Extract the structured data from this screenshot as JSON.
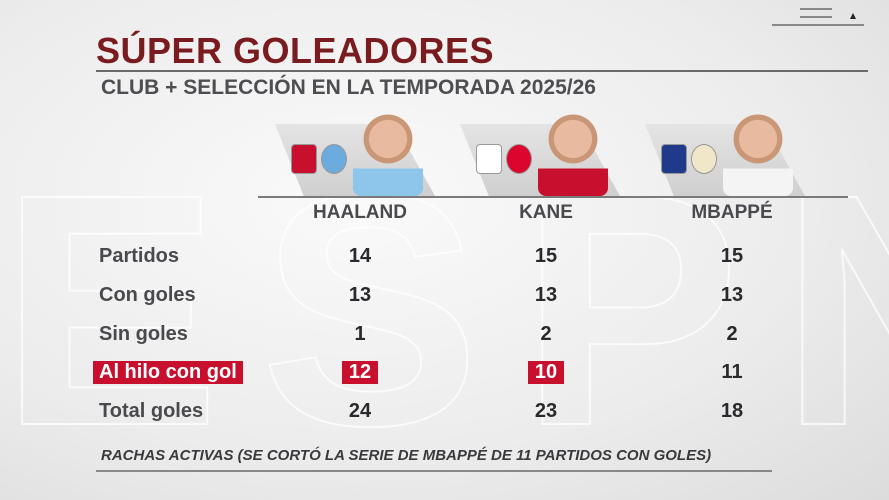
{
  "header": {
    "title": "SÚPER GOLEADORES",
    "subtitle": "CLUB + SELECCIÓN EN LA TEMPORADA 2025/26"
  },
  "players": [
    {
      "name": "HAALAND",
      "badges": [
        "norway-crest",
        "manchester-city-crest"
      ],
      "shirt": "#8ec5ea"
    },
    {
      "name": "KANE",
      "badges": [
        "england-crest",
        "bayern-munich-crest"
      ],
      "shirt": "#c8102e"
    },
    {
      "name": "MBAPPÉ",
      "badges": [
        "france-crest",
        "real-madrid-crest"
      ],
      "shirt": "#f4f4f4"
    }
  ],
  "rows": [
    {
      "label": "Partidos",
      "values": [
        "14",
        "15",
        "15"
      ],
      "highlight": [
        false,
        false,
        false
      ]
    },
    {
      "label": "Con goles",
      "values": [
        "13",
        "13",
        "13"
      ],
      "highlight": [
        false,
        false,
        false
      ]
    },
    {
      "label": "Sin goles",
      "values": [
        "1",
        "2",
        "2"
      ],
      "highlight": [
        false,
        false,
        false
      ]
    },
    {
      "label": "Al hilo con gol",
      "values": [
        "12",
        "10",
        "11"
      ],
      "highlight": [
        true,
        true,
        false
      ],
      "label_highlight": true
    },
    {
      "label": "Total goles",
      "values": [
        "24",
        "23",
        "18"
      ],
      "highlight": [
        false,
        false,
        false
      ]
    }
  ],
  "footer": "RACHAS ACTIVAS (SE CORTÓ LA SERIE DE MBAPPÉ DE 11 PARTIDOS CON GOLES)",
  "colors": {
    "title": "#7a1c1f",
    "highlight": "#c8102e"
  }
}
